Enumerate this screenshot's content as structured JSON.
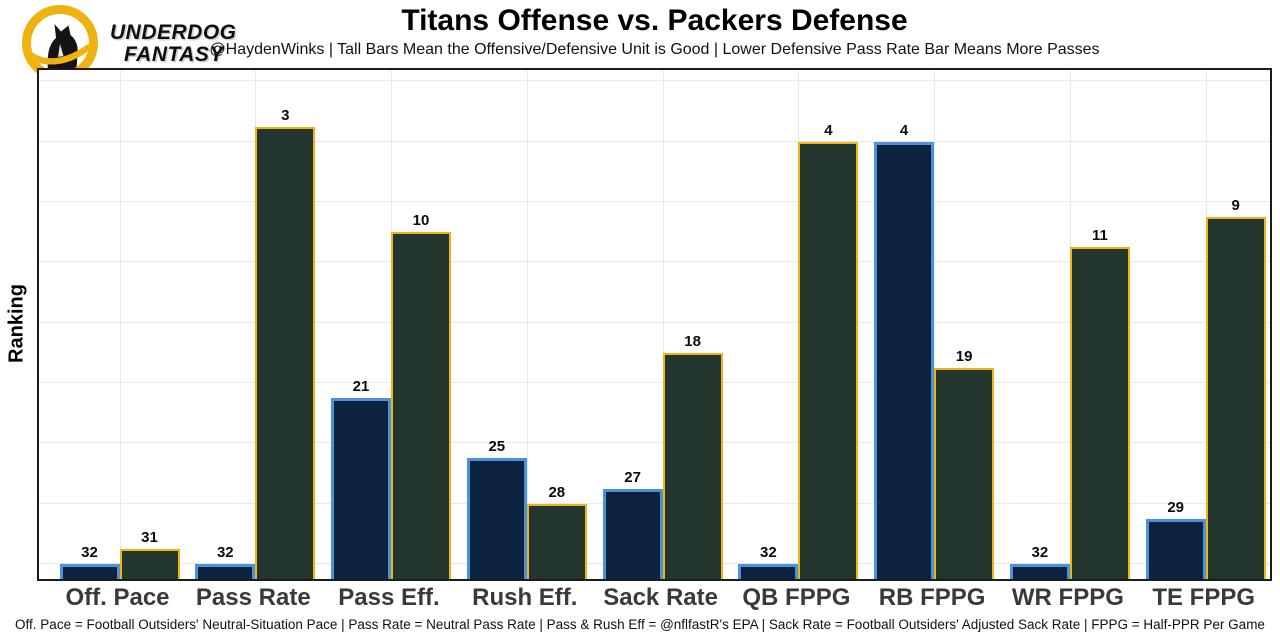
{
  "brand": {
    "name": "Underdog Fantasy",
    "wordmark_line1": "UNDERDOG",
    "wordmark_line2": "FANTASY",
    "gold": "#EFB211",
    "black": "#141414"
  },
  "header": {
    "title": "Titans Offense vs. Packers Defense",
    "subtitle": "@HaydenWinks | Tall Bars Mean the Offensive/Defensive Unit is Good | Lower Defensive Pass Rate Bar Means More Passes"
  },
  "footer": {
    "note": "Off. Pace = Football Outsiders' Neutral-Situation Pace | Pass Rate = Neutral Pass Rate | Pass & Rush Eff = @nflfastR's EPA | Sack Rate = Football Outsiders' Adjusted Sack Rate | FPPG = Half-PPR Per Game"
  },
  "chart_data": {
    "type": "bar",
    "title": "Titans Offense vs. Packers Defense",
    "ylabel": "Ranking",
    "xlabel": "",
    "categories": [
      "Off. Pace",
      "Pass Rate",
      "Pass Eff.",
      "Rush Eff.",
      "Sack Rate",
      "QB FPPG",
      "RB FPPG",
      "WR FPPG",
      "TE FPPG"
    ],
    "series": [
      {
        "name": "Titans Offense rank",
        "values": [
          32,
          32,
          21,
          25,
          27,
          32,
          4,
          32,
          29
        ],
        "fill_color": "#0C2340",
        "border_color": "#4B92DB"
      },
      {
        "name": "Packers Defense rank",
        "values": [
          31,
          3,
          10,
          28,
          18,
          4,
          19,
          11,
          9
        ],
        "fill_color": "#22362E",
        "border_color": "#F2B211"
      }
    ],
    "value_semantics": "NFL rank 1 (best) to 32 (worst); bar height drawn as 33 minus rank, taller = better",
    "ylim": [
      0,
      33
    ],
    "grid": true,
    "gridline_rank_interval": 4,
    "legend": "none",
    "bar_labels": "rank shown above each bar"
  }
}
